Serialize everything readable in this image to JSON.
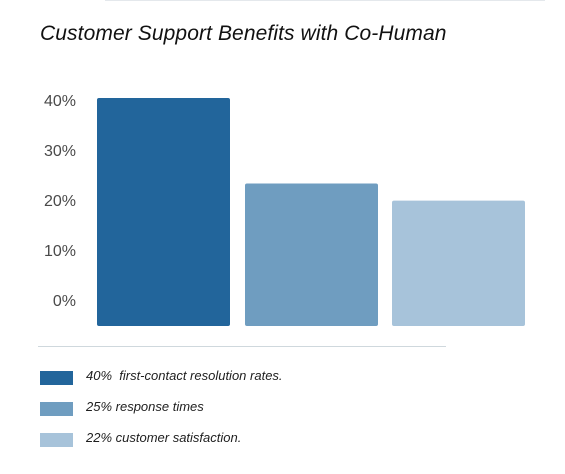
{
  "title": "Customer Support Benefits with Co-Human",
  "chart_data": {
    "type": "bar",
    "title": "Customer Support Benefits with Co-Human",
    "categories": [
      "first-contact resolution rates",
      "response times",
      "customer satisfaction"
    ],
    "values": [
      40,
      25,
      22
    ],
    "ylim": [
      0,
      40
    ],
    "yticks": [
      "40%",
      "30%",
      "20%",
      "10%",
      "0%"
    ],
    "colors": [
      "#22659b",
      "#6f9dc0",
      "#a7c3da"
    ],
    "legend": [
      "40%  first-contact resolution rates.",
      "25% response times",
      "22% customer satisfaction."
    ],
    "legend_position": "bottom",
    "grid": false
  }
}
